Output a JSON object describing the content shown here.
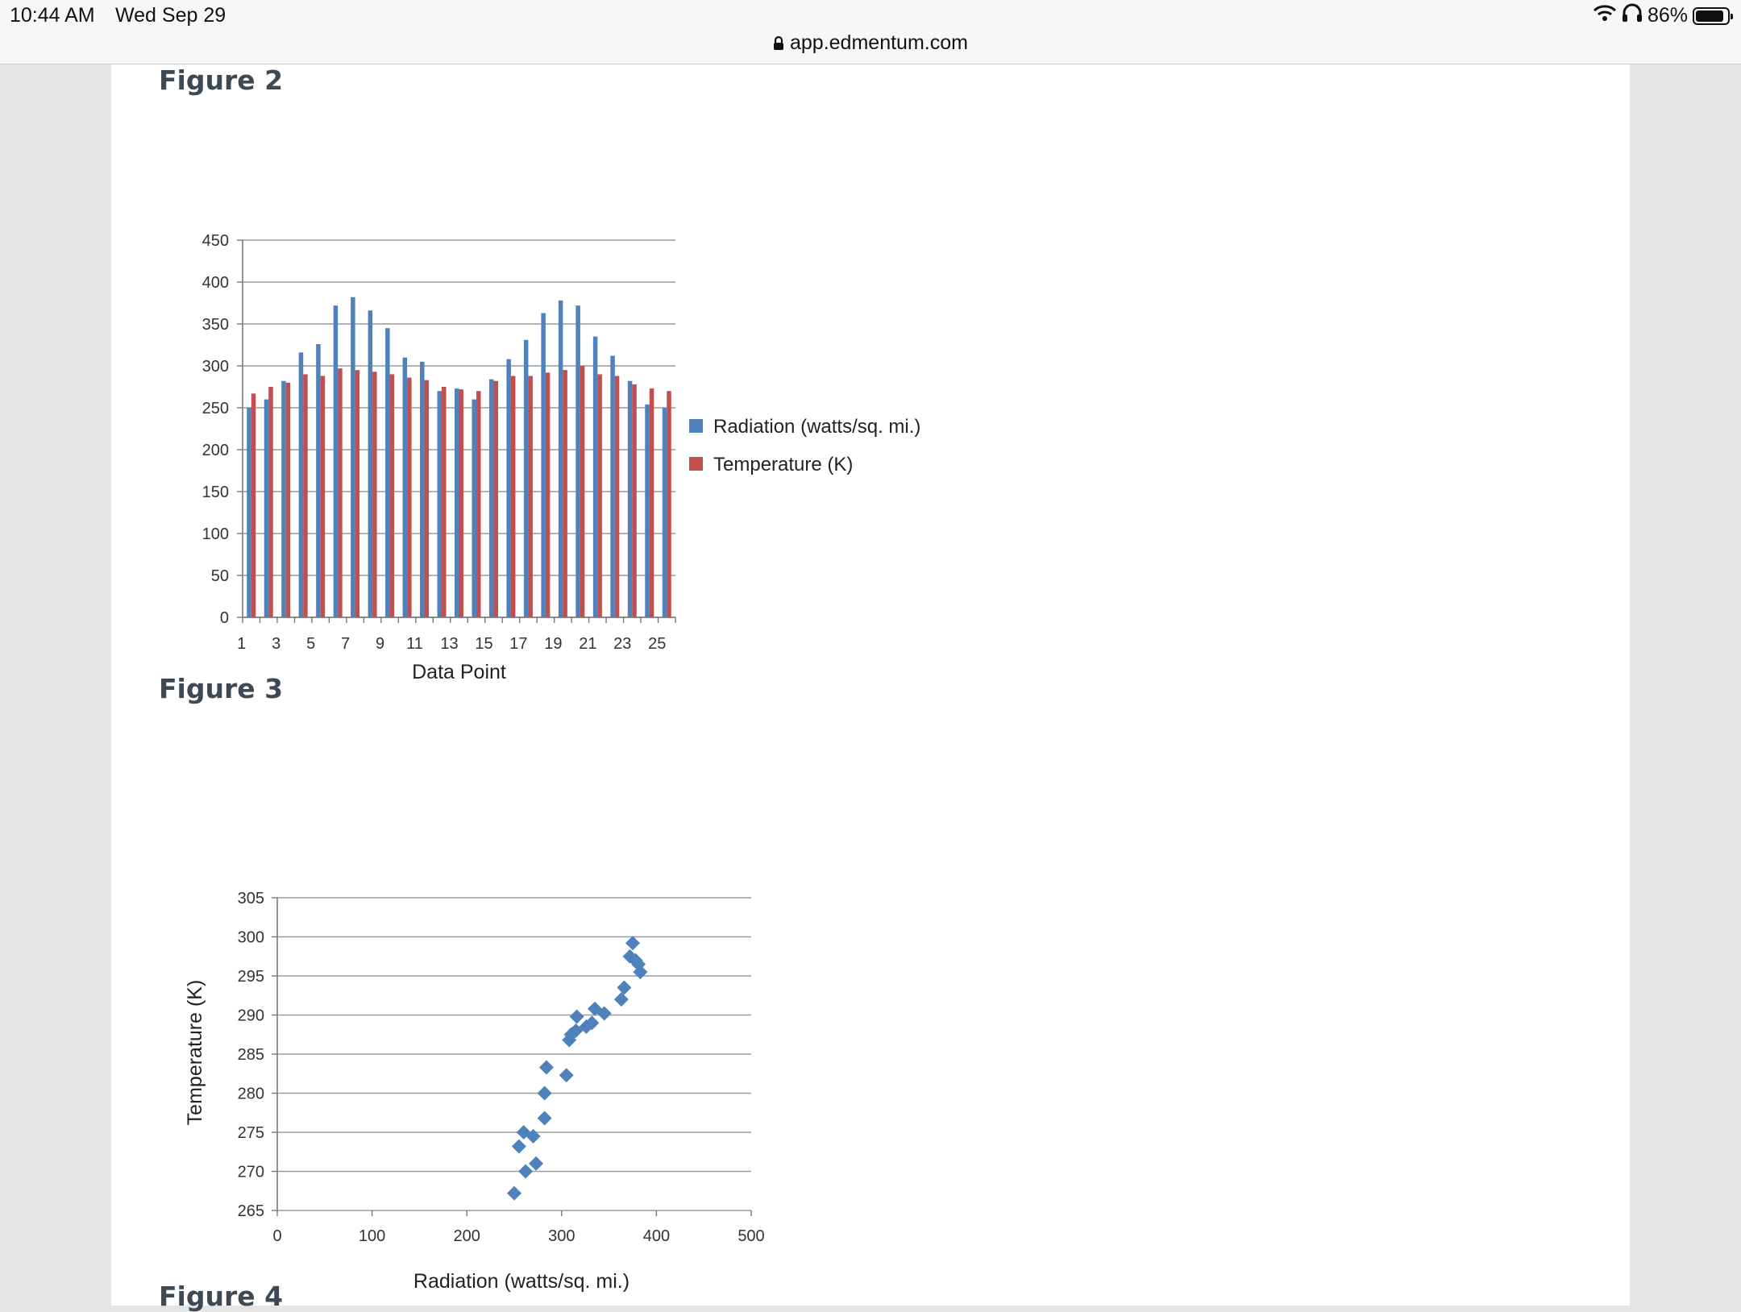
{
  "status_bar": {
    "time": "10:44 AM",
    "date": "Wed Sep 29",
    "battery": "86%",
    "url": "app.edmentum.com"
  },
  "figures": [
    {
      "title": "Figure 2"
    },
    {
      "title": "Figure 3"
    },
    {
      "title": "Figure 4"
    }
  ],
  "chart_data": [
    {
      "type": "bar",
      "title": "",
      "xlabel": "Data Point",
      "ylabel": "",
      "ylim": [
        0,
        450
      ],
      "yticks": [
        0,
        50,
        100,
        150,
        200,
        250,
        300,
        350,
        400,
        450
      ],
      "categories": [
        1,
        2,
        3,
        4,
        5,
        6,
        7,
        8,
        9,
        10,
        11,
        12,
        13,
        14,
        15,
        16,
        17,
        18,
        19,
        20,
        21,
        22,
        23,
        24,
        25
      ],
      "xtick_labels": [
        "1",
        "3",
        "5",
        "7",
        "9",
        "11",
        "13",
        "15",
        "17",
        "19",
        "21",
        "23",
        "25"
      ],
      "grid": true,
      "legend_position": "right",
      "series": [
        {
          "name": "Radiation (watts/sq. mi.)",
          "color": "#4f81bd",
          "values": [
            250,
            260,
            282,
            316,
            326,
            372,
            382,
            366,
            345,
            310,
            305,
            270,
            273,
            260,
            284,
            308,
            331,
            363,
            378,
            372,
            335,
            312,
            282,
            254,
            250
          ]
        },
        {
          "name": "Temperature (K)",
          "color": "#c0504d",
          "values": [
            267,
            275,
            280,
            290,
            288,
            297,
            295,
            293,
            290,
            286,
            283,
            275,
            272,
            270,
            282,
            288,
            288,
            292,
            295,
            300,
            290,
            288,
            278,
            273,
            270
          ]
        }
      ]
    },
    {
      "type": "scatter",
      "title": "",
      "xlabel": "Radiation (watts/sq. mi.)",
      "ylabel": "Temperature (K)",
      "xlim": [
        0,
        500
      ],
      "ylim": [
        265,
        305
      ],
      "xticks": [
        0,
        100,
        200,
        300,
        400,
        500
      ],
      "yticks": [
        265,
        270,
        275,
        280,
        285,
        290,
        295,
        300,
        305
      ],
      "grid": true,
      "marker": "diamond",
      "color": "#4f81bd",
      "points": [
        [
          250,
          267.2
        ],
        [
          255,
          273.2
        ],
        [
          260,
          275
        ],
        [
          262,
          270
        ],
        [
          270,
          274.5
        ],
        [
          273,
          271
        ],
        [
          282,
          276.8
        ],
        [
          282,
          280
        ],
        [
          284,
          283.3
        ],
        [
          305,
          282.3
        ],
        [
          308,
          286.8
        ],
        [
          310,
          287.5
        ],
        [
          315,
          288
        ],
        [
          316,
          289.8
        ],
        [
          326,
          288.5
        ],
        [
          332,
          289
        ],
        [
          335,
          290.8
        ],
        [
          345,
          290.2
        ],
        [
          363,
          292
        ],
        [
          366,
          293.5
        ],
        [
          372,
          297.5
        ],
        [
          375,
          299.2
        ],
        [
          378,
          297
        ],
        [
          381,
          296.5
        ],
        [
          383,
          295.5
        ]
      ]
    }
  ]
}
